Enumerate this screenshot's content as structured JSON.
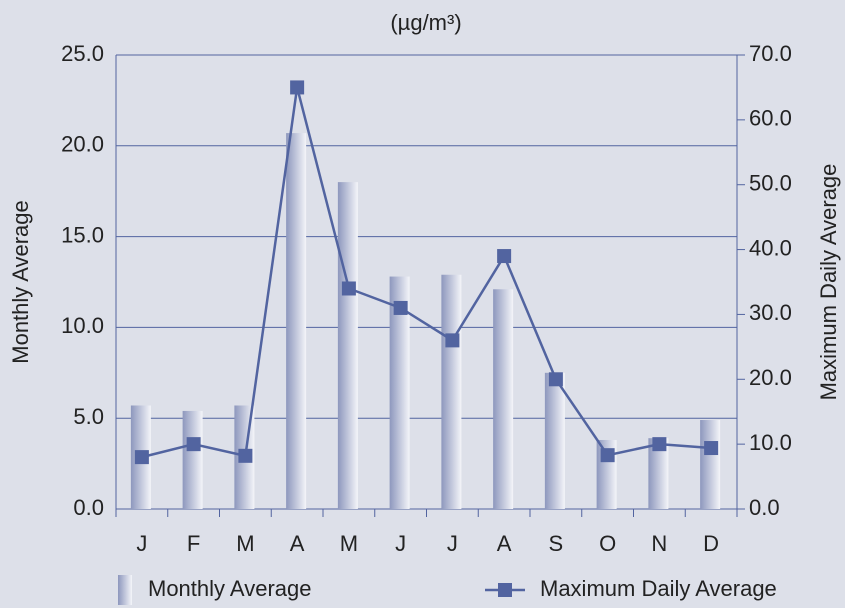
{
  "chart_data": {
    "type": "bar",
    "title": "(µg/m³)",
    "y_label": "Monthly Average",
    "y2_label": "Maximum Daily Average",
    "categories": [
      "J",
      "F",
      "M",
      "A",
      "M",
      "J",
      "J",
      "A",
      "S",
      "O",
      "N",
      "D"
    ],
    "series": [
      {
        "name": "Monthly Average",
        "type": "bar",
        "color": "#8d97bd",
        "values": [
          5.7,
          5.4,
          5.7,
          20.7,
          18.0,
          12.8,
          12.9,
          12.1,
          7.5,
          3.8,
          3.9,
          4.9
        ]
      },
      {
        "name": "Maximum Daily Average",
        "type": "line",
        "axis": "y2",
        "color": "#5264a0",
        "values": [
          8,
          10,
          8.2,
          65,
          34,
          31,
          26,
          39,
          20,
          8.3,
          10,
          9.4
        ]
      }
    ],
    "ylim": [
      0,
      25
    ],
    "yticks": [
      {
        "value": 0,
        "label": "0.0"
      },
      {
        "value": 5,
        "label": "5.0"
      },
      {
        "value": 10,
        "label": "10.0"
      },
      {
        "value": 15,
        "label": "15.0"
      },
      {
        "value": 20,
        "label": "20.0"
      },
      {
        "value": 25,
        "label": "25.0"
      }
    ],
    "y2lim": [
      0,
      70
    ],
    "y2ticks": [
      {
        "value": 0,
        "label": "0.0"
      },
      {
        "value": 10,
        "label": "10.0"
      },
      {
        "value": 20,
        "label": "20.0"
      },
      {
        "value": 30,
        "label": "30.0"
      },
      {
        "value": 40,
        "label": "40.0"
      },
      {
        "value": 50,
        "label": "50.0"
      },
      {
        "value": 60,
        "label": "60.0"
      },
      {
        "value": 70,
        "label": "70.0"
      }
    ],
    "grid": true,
    "legend": "bottom"
  }
}
